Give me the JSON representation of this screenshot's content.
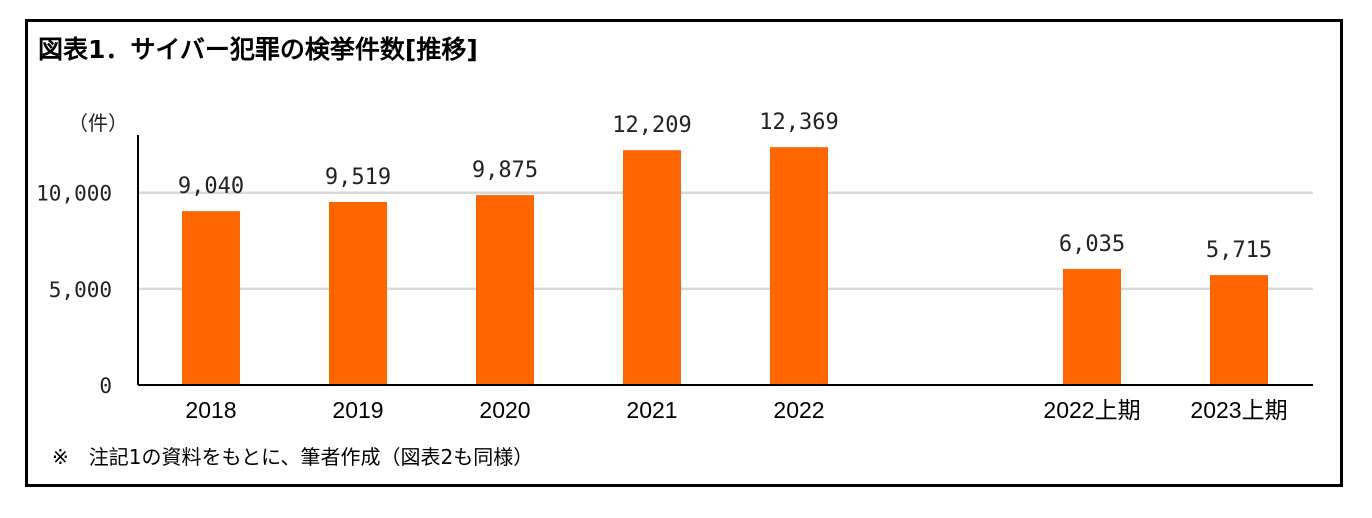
{
  "chart_data": {
    "type": "bar",
    "title": "図表1．サイバー犯罪の検挙件数[推移]",
    "ylabel": "（件）",
    "xlabel": "",
    "categories": [
      "2018",
      "2019",
      "2020",
      "2021",
      "2022",
      "2022上期",
      "2023上期"
    ],
    "values": [
      9040,
      9519,
      9875,
      12209,
      12369,
      6035,
      5715
    ],
    "value_labels": [
      "9,040",
      "9,519",
      "9,875",
      "12,209",
      "12,369",
      "6,035",
      "5,715"
    ],
    "yticks": [
      0,
      5000,
      10000
    ],
    "ytick_labels": [
      "0",
      "5,000",
      "10,000"
    ],
    "ylim": [
      0,
      13000
    ],
    "grid": true,
    "legend": "none",
    "bar_color": "#FF6600",
    "grid_color": "#D9D9D9",
    "note": "※　注記1の資料をもとに、筆者作成（図表2も同様）"
  }
}
